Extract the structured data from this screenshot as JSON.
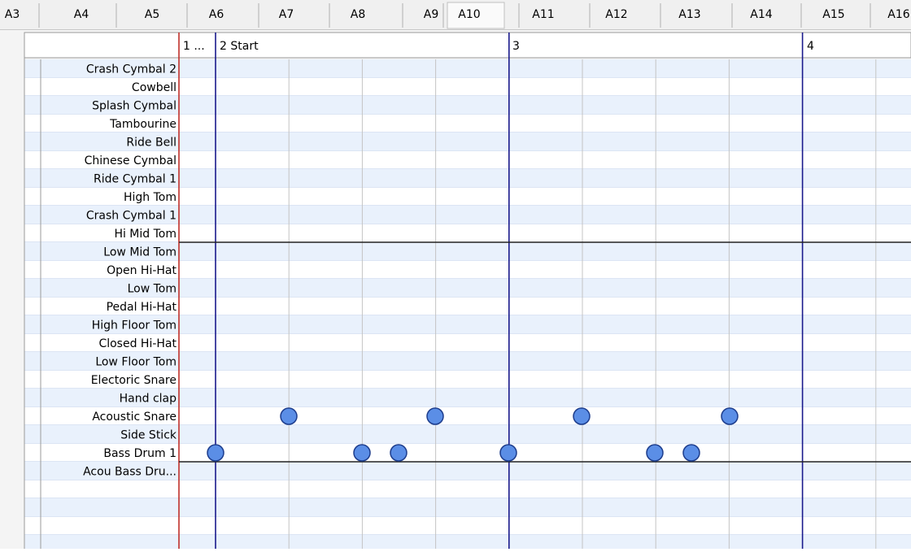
{
  "tabs": [
    "A3",
    "A4",
    "A5",
    "A6",
    "A7",
    "A8",
    "A9",
    "A10",
    "A11",
    "A12",
    "A13",
    "A14",
    "A15",
    "A16"
  ],
  "measures": [
    "1 ...",
    "2 Start",
    "3",
    "4"
  ],
  "instruments": [
    "Crash Cymbal 2",
    "Cowbell",
    "Splash Cymbal",
    "Tambourine",
    "Ride Bell",
    "Chinese Cymbal",
    "Ride Cymbal 1",
    "High Tom",
    "Crash Cymbal 1",
    "Hi Mid Tom",
    "Low Mid Tom",
    "Open Hi-Hat",
    "Low Tom",
    "Pedal Hi-Hat",
    "High Floor Tom",
    "Closed Hi-Hat",
    "Low Floor Tom",
    "Electoric Snare",
    "Hand clap",
    "Acoustic Snare",
    "Side Stick",
    "Bass Drum 1",
    "Acou Bass Dru..."
  ]
}
